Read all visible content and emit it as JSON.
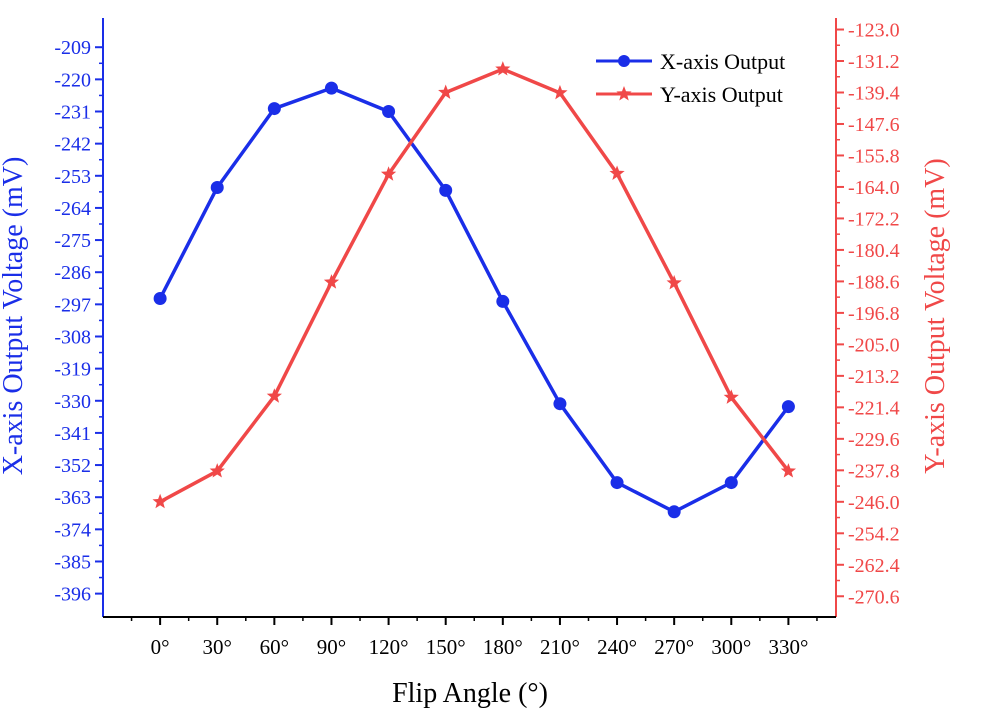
{
  "chart_data": {
    "type": "line",
    "xlabel": "Flip Angle (°)",
    "ylabel": "X-axis Output Voltage (mV)",
    "y2label": "Y-axis Output Voltage (mV)",
    "x": [
      "0°",
      "30°",
      "60°",
      "90°",
      "120°",
      "150°",
      "180°",
      "210°",
      "240°",
      "270°",
      "300°",
      "330°"
    ],
    "x_values": [
      0,
      30,
      60,
      90,
      120,
      150,
      180,
      210,
      240,
      270,
      300,
      330
    ],
    "xlim": [
      -30,
      355
    ],
    "ylim": [
      -404,
      -199
    ],
    "y2lim": [
      -276,
      -120
    ],
    "yticks": [
      -209,
      -220,
      -231,
      -242,
      -253,
      -264,
      -275,
      -286,
      -297,
      -308,
      -319,
      -330,
      -341,
      -352,
      -363,
      -374,
      -385,
      -396
    ],
    "y2ticks": [
      "-123.0",
      "-131.2",
      "-139.4",
      "-147.6",
      "-155.8",
      "-164.0",
      "-172.2",
      "-180.4",
      "-188.6",
      "-196.8",
      "-205.0",
      "-213.2",
      "-221.4",
      "-229.6",
      "-237.8",
      "-246.0",
      "-254.2",
      "-262.4",
      "-270.6"
    ],
    "series": [
      {
        "name": "X-axis Output",
        "axis": "left",
        "marker": "circle",
        "color": "#1a2ee8",
        "values": [
          -295,
          -257,
          -230,
          -223,
          -231,
          -258,
          -296,
          -331,
          -358,
          -368,
          -358,
          -332
        ]
      },
      {
        "name": "Y-axis Output",
        "axis": "right",
        "marker": "star",
        "color": "#f04848",
        "values": [
          -246.0,
          -238.0,
          -218.5,
          -188.8,
          -160.7,
          -139.4,
          -133.3,
          -139.5,
          -160.5,
          -189.0,
          -218.8,
          -238.0
        ]
      }
    ],
    "grid": false,
    "legend_position": "top-right"
  },
  "colors": {
    "left_axis": "#1a2ee8",
    "right_axis": "#f04848",
    "bottom_axis": "#000000"
  }
}
